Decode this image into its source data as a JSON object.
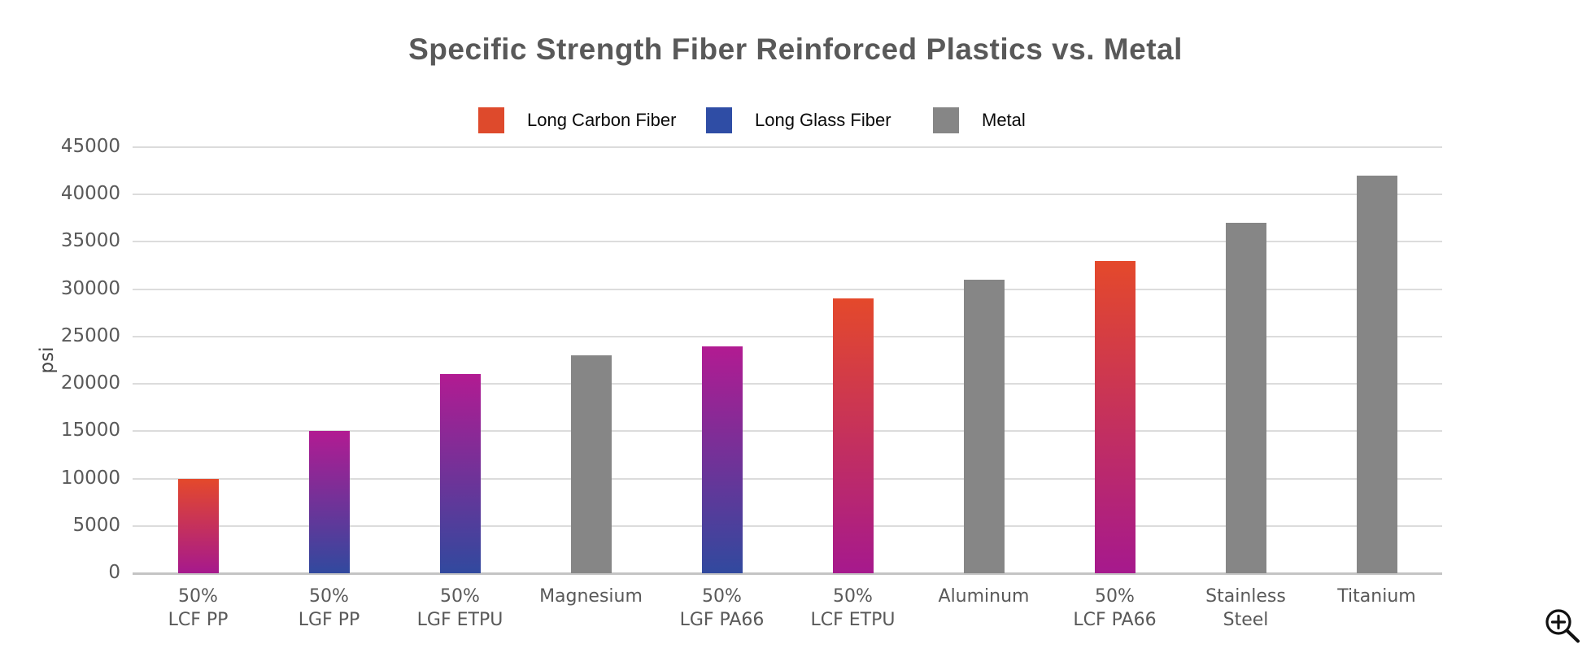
{
  "title": "Specific Strength Fiber Reinforced Plastics vs. Metal",
  "legend": [
    {
      "label": "Long Carbon Fiber",
      "color": "#de4a2c"
    },
    {
      "label": "Long Glass Fiber",
      "color": "#2f4da5"
    },
    {
      "label": "Metal",
      "color": "#868686"
    }
  ],
  "chart_data": {
    "type": "bar",
    "title": "Specific Strength Fiber Reinforced Plastics vs. Metal",
    "xlabel": "",
    "ylabel": "psi",
    "ylim": [
      0,
      45000
    ],
    "ytick_interval": 5000,
    "grid": true,
    "legend_position": "top",
    "bar_styles": {
      "LCF": [
        "#e4492b",
        "#a6198d"
      ],
      "LGF": [
        "#b21b92",
        "#31499e"
      ],
      "METAL": [
        "#868686",
        "#868686"
      ]
    },
    "bars": [
      {
        "label": [
          "50%",
          "LCF PP"
        ],
        "group": "Long Carbon Fiber",
        "style": "LCF",
        "value": 10000
      },
      {
        "label": [
          "50%",
          "LGF PP"
        ],
        "group": "Long Glass Fiber",
        "style": "LGF",
        "value": 15000
      },
      {
        "label": [
          "50%",
          "LGF ETPU"
        ],
        "group": "Long Glass Fiber",
        "style": "LGF",
        "value": 21000
      },
      {
        "label": [
          "Magnesium"
        ],
        "group": "Metal",
        "style": "METAL",
        "value": 23000
      },
      {
        "label": [
          "50%",
          "LGF PA66"
        ],
        "group": "Long Glass Fiber",
        "style": "LGF",
        "value": 24000
      },
      {
        "label": [
          "50%",
          "LCF ETPU"
        ],
        "group": "Long Carbon Fiber",
        "style": "LCF",
        "value": 29000
      },
      {
        "label": [
          "Aluminum"
        ],
        "group": "Metal",
        "style": "METAL",
        "value": 31000
      },
      {
        "label": [
          "50%",
          "LCF PA66"
        ],
        "group": "Long Carbon Fiber",
        "style": "LCF",
        "value": 33000
      },
      {
        "label": [
          "Stainless",
          "Steel"
        ],
        "group": "Metal",
        "style": "METAL",
        "value": 37000
      },
      {
        "label": [
          "Titanium"
        ],
        "group": "Metal",
        "style": "METAL",
        "value": 42000
      }
    ]
  },
  "icons": {
    "zoom_in": "magnifier-with-plus"
  },
  "colors": {
    "title_text": "#595959",
    "axis_text": "#595959",
    "gridline": "#dcdcdc",
    "axis_line": "#c4c4c4",
    "background": "#ffffff",
    "zoom_icon": "#111111"
  }
}
